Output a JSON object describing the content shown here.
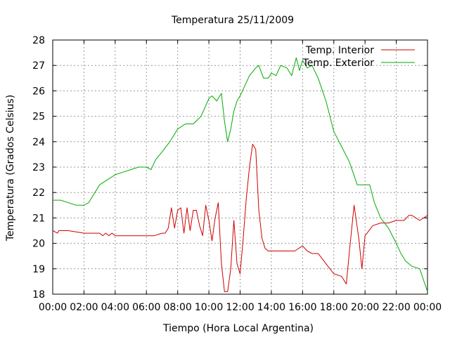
{
  "chart_data": {
    "type": "line",
    "title": "Temperatura 25/11/2009",
    "xlabel": "Tiempo (Hora Local Argentina)",
    "ylabel": "Temperatura (Grados Celsius)",
    "xlim": [
      0,
      24
    ],
    "ylim": [
      18,
      28
    ],
    "x_ticks": [
      "00:00",
      "02:00",
      "04:00",
      "06:00",
      "08:00",
      "10:00",
      "12:00",
      "14:00",
      "16:00",
      "18:00",
      "20:00",
      "22:00",
      "00:00"
    ],
    "y_ticks": [
      "18",
      "19",
      "20",
      "21",
      "22",
      "23",
      "24",
      "25",
      "26",
      "27",
      "28"
    ],
    "grid": true,
    "legend": "top-right",
    "series": [
      {
        "name": "Temp. Interior",
        "color": "#cc0000",
        "x": [
          0,
          0.3,
          0.4,
          1.0,
          2.0,
          2.5,
          3.0,
          3.2,
          3.4,
          3.6,
          3.8,
          4.0,
          5.0,
          6.0,
          6.5,
          7.0,
          7.2,
          7.4,
          7.6,
          7.8,
          8.0,
          8.2,
          8.4,
          8.6,
          8.8,
          9.0,
          9.2,
          9.4,
          9.6,
          9.8,
          10.0,
          10.2,
          10.4,
          10.6,
          10.8,
          11.0,
          11.2,
          11.4,
          11.6,
          11.8,
          12.0,
          12.2,
          12.4,
          12.6,
          12.8,
          13.0,
          13.2,
          13.4,
          13.6,
          13.8,
          14.0,
          14.5,
          15.0,
          15.5,
          16.0,
          16.3,
          16.6,
          17.0,
          17.5,
          18.0,
          18.5,
          18.8,
          19.0,
          19.3,
          19.6,
          19.8,
          20.0,
          20.5,
          21.0,
          21.5,
          22.0,
          22.5,
          22.8,
          23.0,
          23.5,
          24.0
        ],
        "y": [
          20.5,
          20.4,
          20.5,
          20.5,
          20.4,
          20.4,
          20.4,
          20.3,
          20.4,
          20.3,
          20.4,
          20.3,
          20.3,
          20.3,
          20.3,
          20.4,
          20.4,
          20.6,
          21.4,
          20.6,
          21.3,
          21.4,
          20.4,
          21.4,
          20.5,
          21.3,
          21.3,
          20.7,
          20.3,
          21.5,
          20.9,
          20.1,
          21.0,
          21.6,
          19.2,
          18.1,
          18.1,
          19.0,
          20.9,
          19.2,
          18.8,
          20.2,
          21.8,
          23.0,
          23.9,
          23.7,
          21.3,
          20.2,
          19.8,
          19.7,
          19.7,
          19.7,
          19.7,
          19.7,
          19.9,
          19.7,
          19.6,
          19.6,
          19.2,
          18.8,
          18.7,
          18.4,
          19.7,
          21.5,
          20.2,
          19.0,
          20.3,
          20.7,
          20.8,
          20.8,
          20.9,
          20.9,
          21.1,
          21.1,
          20.9,
          21.1
        ]
      },
      {
        "name": "Temp. Exterior",
        "color": "#00aa00",
        "x": [
          0,
          0.5,
          1.0,
          1.5,
          2.0,
          2.3,
          2.5,
          2.7,
          3.0,
          3.5,
          4.0,
          4.5,
          5.0,
          5.5,
          6.0,
          6.3,
          6.6,
          7.0,
          7.5,
          8.0,
          8.5,
          9.0,
          9.5,
          10.0,
          10.2,
          10.5,
          10.8,
          11.0,
          11.2,
          11.4,
          11.6,
          11.8,
          12.0,
          12.3,
          12.6,
          13.0,
          13.2,
          13.5,
          13.8,
          14.0,
          14.3,
          14.6,
          15.0,
          15.3,
          15.6,
          15.8,
          16.0,
          16.3,
          16.6,
          17.0,
          17.5,
          18.0,
          18.5,
          19.0,
          19.5,
          20.0,
          20.3,
          20.6,
          21.0,
          21.5,
          22.0,
          22.3,
          22.6,
          23.0,
          23.5,
          24.0
        ],
        "y": [
          21.7,
          21.7,
          21.6,
          21.5,
          21.5,
          21.6,
          21.8,
          22.0,
          22.3,
          22.5,
          22.7,
          22.8,
          22.9,
          23.0,
          23.0,
          22.9,
          23.3,
          23.6,
          24.0,
          24.5,
          24.7,
          24.7,
          25.0,
          25.7,
          25.8,
          25.6,
          25.9,
          24.8,
          24.0,
          24.5,
          25.2,
          25.6,
          25.8,
          26.2,
          26.6,
          26.9,
          27.0,
          26.5,
          26.5,
          26.7,
          26.6,
          27.0,
          26.9,
          26.6,
          27.3,
          26.8,
          27.2,
          26.9,
          27.0,
          26.5,
          25.6,
          24.4,
          23.8,
          23.2,
          22.3,
          22.3,
          22.3,
          21.6,
          21.0,
          20.6,
          20.0,
          19.6,
          19.3,
          19.1,
          19.0,
          18.1
        ]
      }
    ]
  }
}
